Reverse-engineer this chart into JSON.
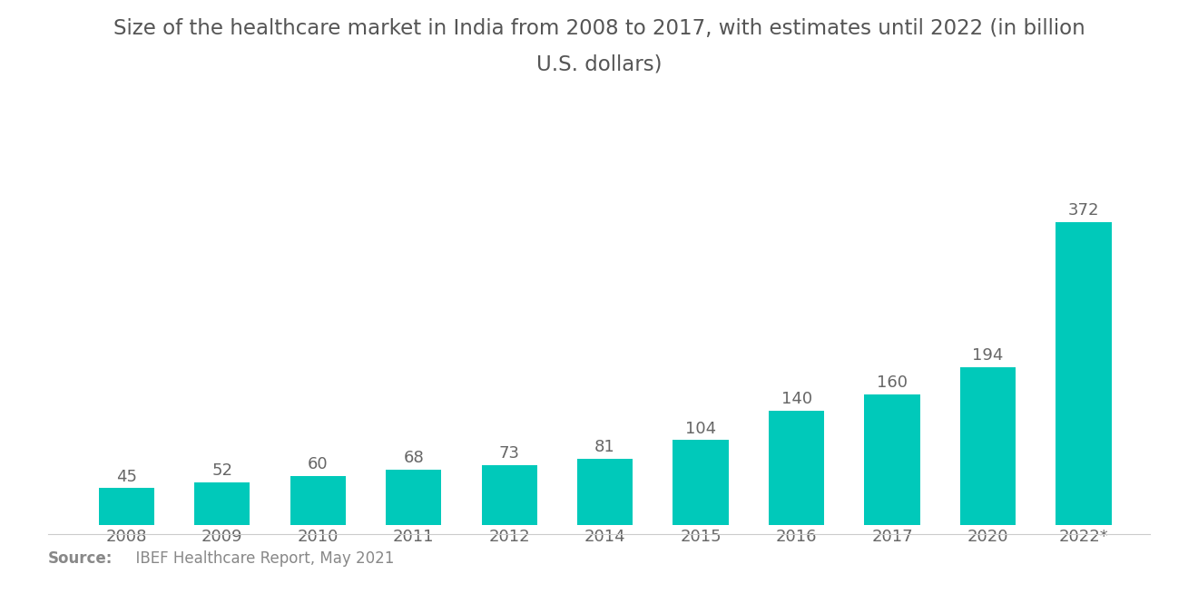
{
  "title_line1": "Size of the healthcare market in India from 2008 to 2017, with estimates until 2022 (in billion",
  "title_line2": "U.S. dollars)",
  "categories": [
    "2008",
    "2009",
    "2010",
    "2011",
    "2012",
    "2014",
    "2015",
    "2016",
    "2017",
    "2020",
    "2022*"
  ],
  "values": [
    45,
    52,
    60,
    68,
    73,
    81,
    104,
    140,
    160,
    194,
    372
  ],
  "bar_color": "#00C9BA",
  "background_color": "#ffffff",
  "label_color": "#666666",
  "title_color": "#555555",
  "source_bold": "Source:",
  "source_rest": "  IBEF Healthcare Report, May 2021",
  "title_fontsize": 16.5,
  "label_fontsize": 13,
  "tick_fontsize": 13,
  "source_fontsize": 12,
  "ylim": [
    0,
    430
  ]
}
